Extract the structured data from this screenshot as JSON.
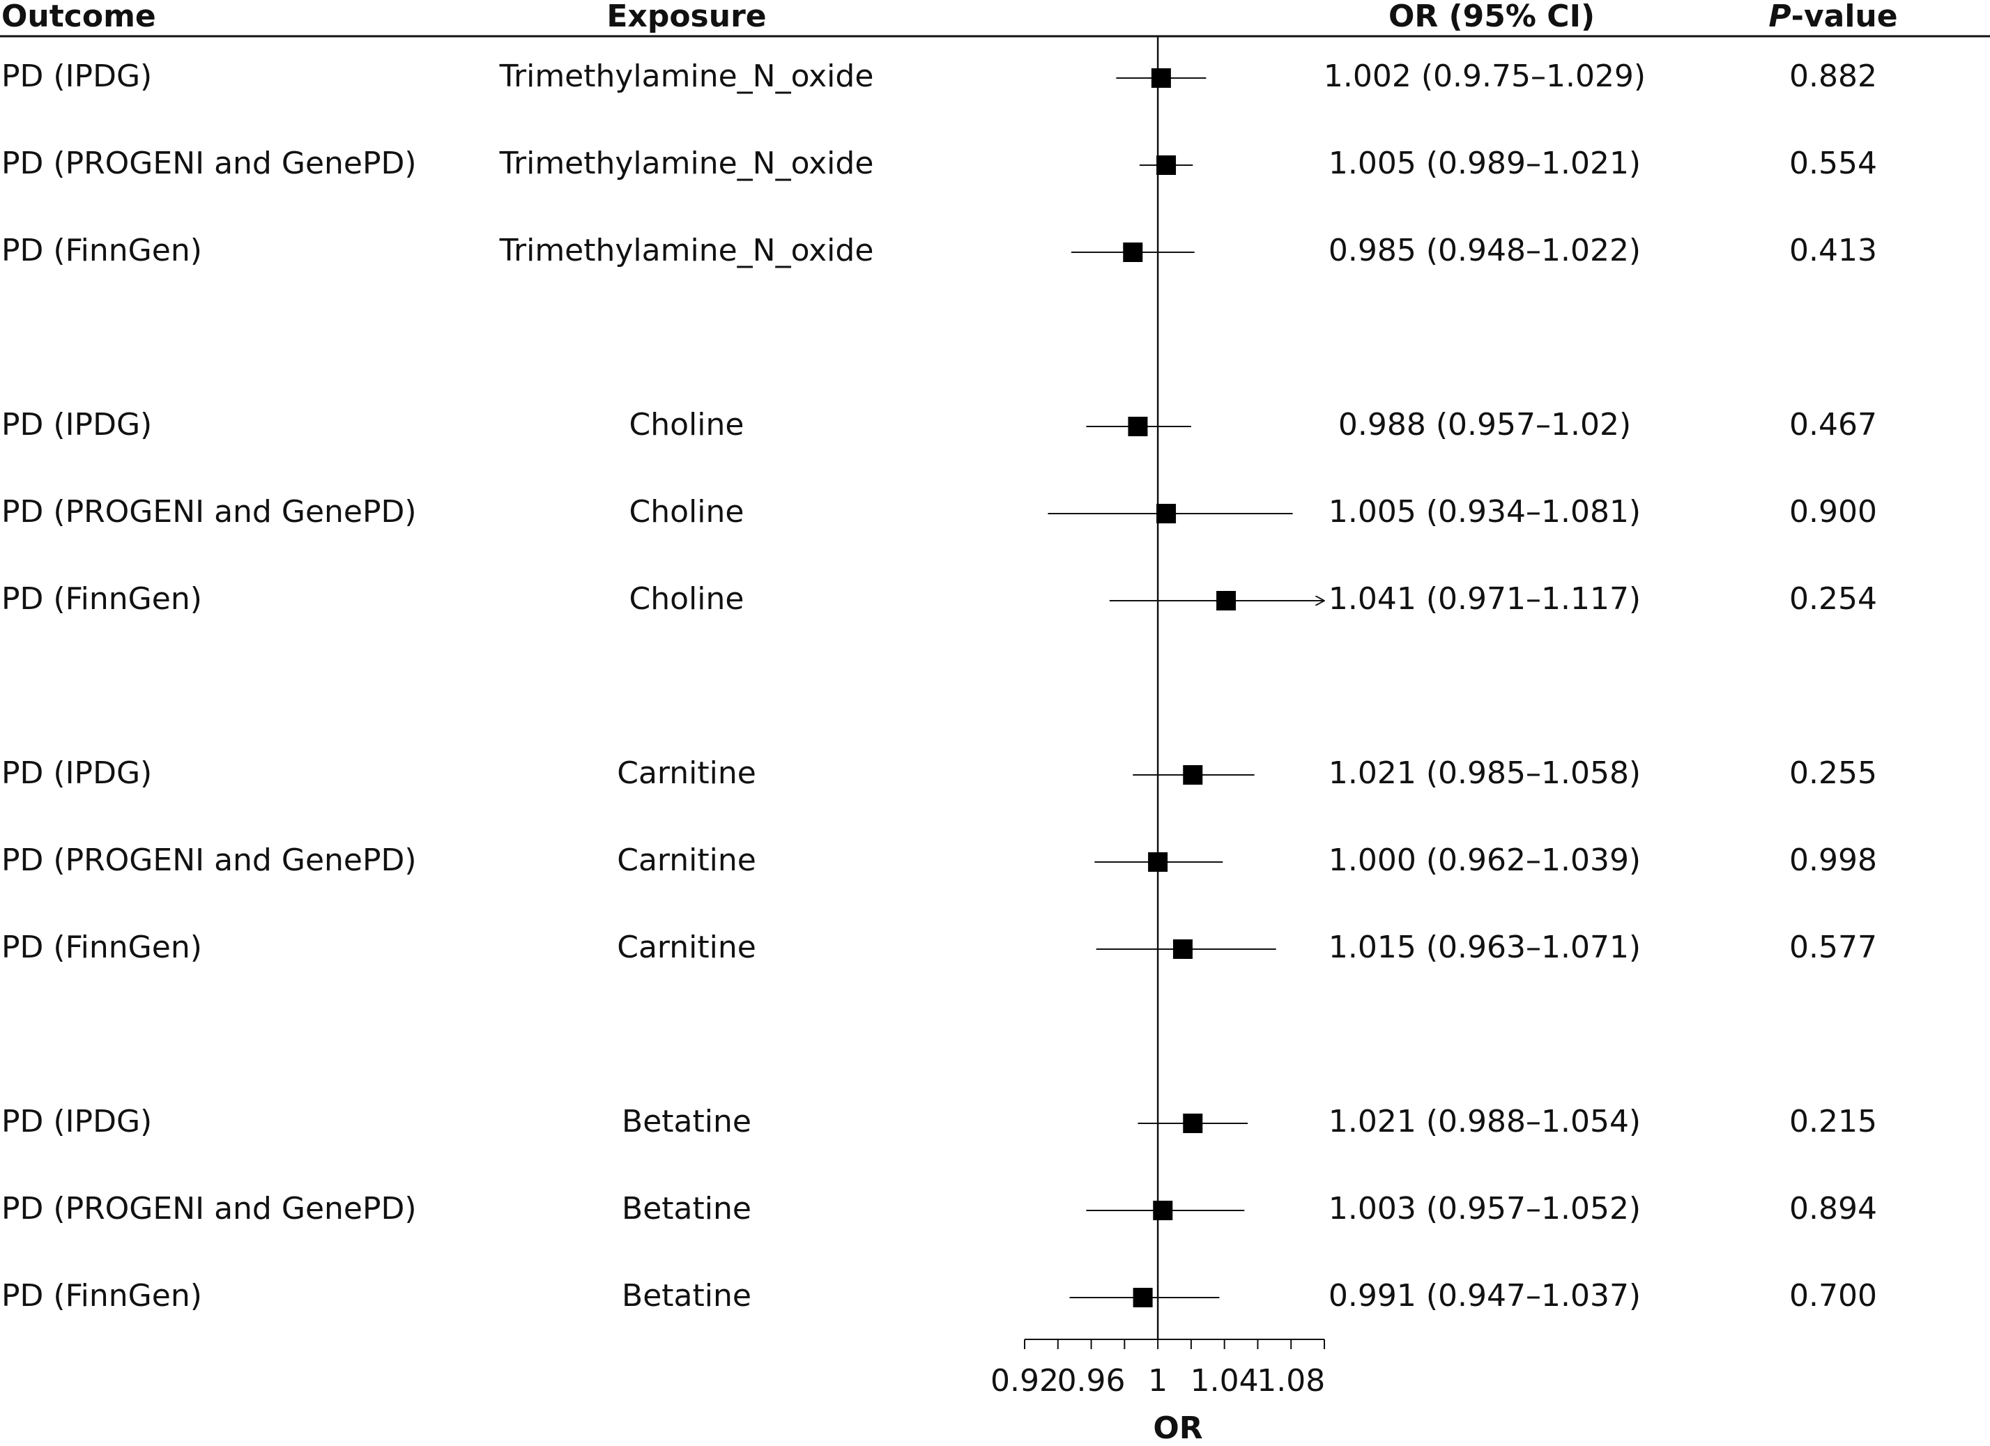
{
  "headers": {
    "outcome": "Outcome",
    "exposure": "Exposure",
    "or_ci": "OR (95% CI)",
    "p_italic": "P",
    "p_rest": "-value"
  },
  "rows": [
    {
      "outcome": "PD (IPDG)",
      "exposure": "Trimethylamine_N_oxide",
      "or_ci": "1.002 (0.9.75–1.029)",
      "p": "0.882"
    },
    {
      "outcome": "PD (PROGENI and GenePD)",
      "exposure": "Trimethylamine_N_oxide",
      "or_ci": "1.005 (0.989–1.021)",
      "p": "0.554"
    },
    {
      "outcome": "PD (FinnGen)",
      "exposure": "Trimethylamine_N_oxide",
      "or_ci": "0.985 (0.948–1.022)",
      "p": "0.413"
    },
    {
      "outcome": "PD (IPDG)",
      "exposure": "Choline",
      "or_ci": "0.988 (0.957–1.02)",
      "p": "0.467"
    },
    {
      "outcome": "PD (PROGENI and GenePD)",
      "exposure": "Choline",
      "or_ci": "1.005 (0.934–1.081)",
      "p": "0.900"
    },
    {
      "outcome": "PD (FinnGen)",
      "exposure": "Choline",
      "or_ci": "1.041 (0.971–1.117)",
      "p": "0.254"
    },
    {
      "outcome": "PD (IPDG)",
      "exposure": "Carnitine",
      "or_ci": "1.021 (0.985–1.058)",
      "p": "0.255"
    },
    {
      "outcome": "PD (PROGENI and GenePD)",
      "exposure": "Carnitine",
      "or_ci": "1.000 (0.962–1.039)",
      "p": "0.998"
    },
    {
      "outcome": "PD (FinnGen)",
      "exposure": "Carnitine",
      "or_ci": "1.015 (0.963–1.071)",
      "p": "0.577"
    },
    {
      "outcome": "PD (IPDG)",
      "exposure": "Betatine",
      "or_ci": "1.021 (0.988–1.054)",
      "p": "0.215"
    },
    {
      "outcome": "PD (PROGENI and GenePD)",
      "exposure": "Betatine",
      "or_ci": "1.003 (0.957–1.052)",
      "p": "0.894"
    },
    {
      "outcome": "PD (FinnGen)",
      "exposure": "Betatine",
      "or_ci": "0.991 (0.947–1.037)",
      "p": "0.700"
    }
  ],
  "chart_data": {
    "type": "scatter",
    "subtype": "forest-plot",
    "xlabel": "OR",
    "xlim": [
      0.92,
      1.1
    ],
    "xticks": [
      0.92,
      0.96,
      1,
      1.04,
      1.08
    ],
    "xtick_labels": [
      "0.92",
      "0.96",
      "1",
      "1.04",
      "1.08"
    ],
    "reference_line": 1,
    "points": [
      {
        "or": 1.002,
        "lo": 0.975,
        "hi": 1.029
      },
      {
        "or": 1.005,
        "lo": 0.989,
        "hi": 1.021
      },
      {
        "or": 0.985,
        "lo": 0.948,
        "hi": 1.022
      },
      {
        "or": 0.988,
        "lo": 0.957,
        "hi": 1.02
      },
      {
        "or": 1.005,
        "lo": 0.934,
        "hi": 1.081
      },
      {
        "or": 1.041,
        "lo": 0.971,
        "hi": 1.117,
        "arrow_right": true
      },
      {
        "or": 1.021,
        "lo": 0.985,
        "hi": 1.058
      },
      {
        "or": 1.0,
        "lo": 0.962,
        "hi": 1.039
      },
      {
        "or": 1.015,
        "lo": 0.963,
        "hi": 1.071
      },
      {
        "or": 1.021,
        "lo": 0.988,
        "hi": 1.054
      },
      {
        "or": 1.003,
        "lo": 0.957,
        "hi": 1.052
      },
      {
        "or": 0.991,
        "lo": 0.947,
        "hi": 1.037
      }
    ],
    "marker_color": "#000000"
  }
}
